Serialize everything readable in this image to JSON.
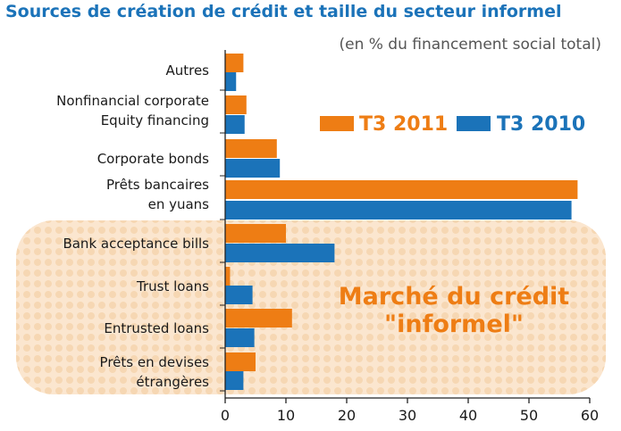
{
  "chart_data": {
    "type": "bar",
    "orientation": "horizontal",
    "title": "Sources de création de crédit et taille du secteur informel",
    "subtitle": "(en % du financement social total)",
    "categories": [
      [
        "Autres"
      ],
      [
        "Nonfinancial corporate",
        "Equity financing"
      ],
      [
        "Corporate bonds"
      ],
      [
        "Prêts bancaires",
        "en yuans"
      ],
      [
        "Bank acceptance bills"
      ],
      [
        "Trust loans"
      ],
      [
        "Entrusted loans"
      ],
      [
        "Prêts en devises",
        "étrangères"
      ]
    ],
    "series": [
      {
        "name": "T3 2011",
        "color": "#ee7d14",
        "values": [
          3,
          3.5,
          8.5,
          58,
          10,
          0.8,
          11,
          5
        ]
      },
      {
        "name": "T3 2010",
        "color": "#1b73b9",
        "values": [
          1.8,
          3.2,
          9,
          57,
          18,
          4.5,
          4.8,
          3
        ]
      }
    ],
    "xlim": [
      0,
      60
    ],
    "xticks": [
      "0",
      "10",
      "20",
      "30",
      "40",
      "50",
      "60"
    ],
    "legend_position": "top-right",
    "annotation": {
      "lines": [
        "Marché du crédit",
        "\"informel\""
      ],
      "applies_to": [
        "Bank acceptance bills",
        "Trust loans",
        "Entrusted loans",
        "Prêts en devises étrangères"
      ],
      "color": "#ee7d14"
    }
  }
}
